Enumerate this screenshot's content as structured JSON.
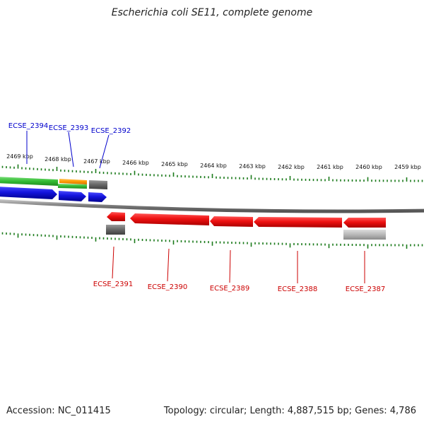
{
  "title": "Escherichia coli SE11, complete genome",
  "footer": {
    "accession": "Accession: NC_011415",
    "stats": "Topology: circular; Length: 4,887,515 bp; Genes: 4,786"
  },
  "kbp_labels": [
    "2469 kbp",
    "2468 kbp",
    "2467 kbp",
    "2466 kbp",
    "2465 kbp",
    "2464 kbp",
    "2463 kbp",
    "2462 kbp",
    "2461 kbp",
    "2460 kbp",
    "2459 kbp"
  ],
  "genes_top": [
    "ECSE_2394",
    "ECSE_2393",
    "ECSE_2392"
  ],
  "genes_bottom": [
    "ECSE_2391",
    "ECSE_2390",
    "ECSE_2389",
    "ECSE_2388",
    "ECSE_2387"
  ],
  "colors": {
    "top_label": "#0000cc",
    "bottom_label": "#cc0000",
    "tick": "#1a7a1a",
    "backbone": "#808080",
    "gene_red": "#ee1111",
    "gene_blue": "#1414dd",
    "gene_green": "#33bb33",
    "gene_orange": "#ff9900",
    "gene_gray": "#666666",
    "gene_lightgray": "#b8b8b8"
  }
}
